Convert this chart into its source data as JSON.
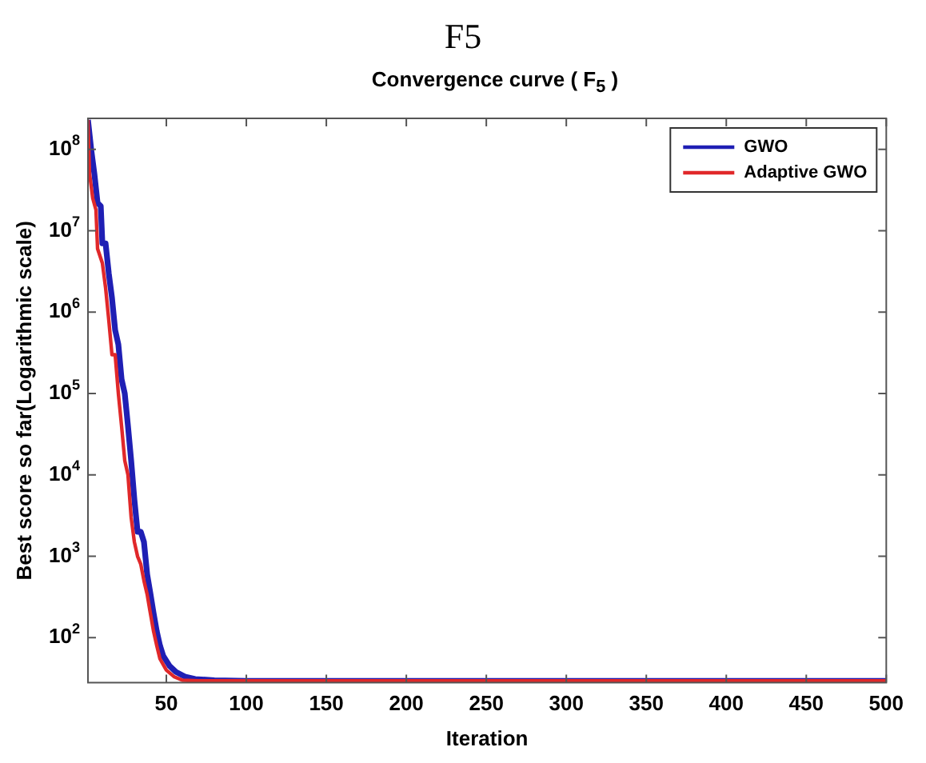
{
  "chart_data": {
    "type": "line",
    "title": "F5",
    "subtitle": "Convergence curve ( F$_{5}$ )",
    "xlabel": "Iteration",
    "ylabel": "Best score so far(Logarithmic scale)",
    "log": "y",
    "grid": false,
    "legend": "top right",
    "marker": "none",
    "line_style": "solid",
    "xlim": [
      1,
      500
    ],
    "xticks": [
      50,
      100,
      150,
      200,
      250,
      300,
      350,
      400,
      450,
      500
    ],
    "ylim": [
      28,
      240000000
    ],
    "yticks": [
      {
        "value": 100,
        "label": "10$^{2}$"
      },
      {
        "value": 1000,
        "label": "10$^{3}$"
      },
      {
        "value": 10000,
        "label": "10$^{4}$"
      },
      {
        "value": 100000,
        "label": "10$^{5}$"
      },
      {
        "value": 1000000,
        "label": "10$^{6}$"
      },
      {
        "value": 10000000,
        "label": "10$^{7}$"
      },
      {
        "value": 100000000,
        "label": "10$^{8}$"
      }
    ],
    "series": [
      {
        "name": "GWO",
        "color": "#1f1fb4",
        "x": [
          1,
          3,
          5,
          7,
          9,
          10,
          12,
          14,
          16,
          18,
          20,
          22,
          24,
          26,
          28,
          30,
          32,
          34,
          36,
          38,
          40,
          42,
          44,
          46,
          48,
          52,
          56,
          62,
          68,
          80,
          100,
          500
        ],
        "values": [
          230000000,
          100000000,
          50000000,
          22000000,
          20000000,
          7000000,
          7000000,
          3000000,
          1500000,
          600000,
          400000,
          150000,
          100000,
          40000,
          15000,
          5000,
          2000,
          2000,
          1500,
          600,
          350,
          200,
          120,
          80,
          60,
          45,
          38,
          33,
          31,
          30,
          29.5,
          29.5
        ]
      },
      {
        "name": "Adaptive GWO",
        "color": "#e0282a",
        "x": [
          1,
          2,
          4,
          6,
          7,
          10,
          12,
          14,
          16,
          18,
          20,
          22,
          24,
          26,
          28,
          30,
          32,
          34,
          36,
          38,
          40,
          42,
          44,
          46,
          50,
          55,
          60,
          70,
          500
        ],
        "values": [
          230000000,
          50000000,
          25000000,
          18000000,
          6000000,
          4000000,
          2000000,
          800000,
          300000,
          300000,
          100000,
          40000,
          15000,
          10000,
          3000,
          1500,
          1000,
          800,
          500,
          340,
          200,
          120,
          80,
          55,
          40,
          33,
          30,
          29.5,
          29.5
        ]
      }
    ]
  }
}
